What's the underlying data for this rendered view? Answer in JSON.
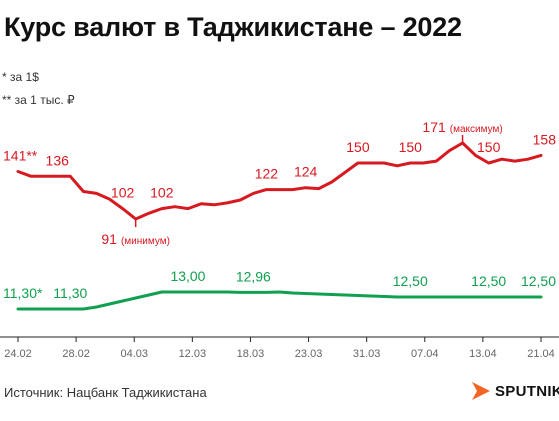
{
  "title": "Курс валют в Таджикистане – 2022",
  "notes": {
    "usd": "* за 1$",
    "rub": "** за 1 тыс. ₽"
  },
  "source": "Источник: Нацбанк Таджикистана",
  "logo_text": "SPUTNIK",
  "colors": {
    "rub_series": "#d71920",
    "usd_series": "#10a050",
    "axis": "#222222",
    "tick_text": "#666666",
    "logo": "#f26522"
  },
  "chart_data": [
    {
      "type": "line",
      "title": "",
      "xlabel": "",
      "ylabel": "",
      "grid": false,
      "x_ticks": [
        "24.02",
        "28.02",
        "04.03",
        "12.03",
        "18.03",
        "23.03",
        "31.03",
        "07.04",
        "13.04",
        "21.04"
      ],
      "series": [
        {
          "unit_note": "за 1 тыс. ₽",
          "values": [
            141,
            136,
            136,
            136,
            136,
            120,
            118,
            112,
            102,
            91,
            97,
            102,
            104,
            102,
            107,
            106,
            108,
            111,
            118,
            122,
            122,
            122,
            124,
            123,
            130,
            140,
            150,
            150,
            150,
            147,
            150,
            150,
            152,
            163,
            171,
            158,
            150,
            154,
            152,
            154,
            158
          ],
          "labels": [
            {
              "i": 0,
              "text": "141**"
            },
            {
              "i": 3,
              "text": "136"
            },
            {
              "i": 8,
              "text": "102"
            },
            {
              "i": 9,
              "text": "91",
              "note": "(минимум)"
            },
            {
              "i": 11,
              "text": "102"
            },
            {
              "i": 19,
              "text": "122"
            },
            {
              "i": 22,
              "text": "124"
            },
            {
              "i": 26,
              "text": "150"
            },
            {
              "i": 30,
              "text": "150"
            },
            {
              "i": 34,
              "text": "171",
              "note": "(максимум)"
            },
            {
              "i": 36,
              "text": "150"
            },
            {
              "i": 40,
              "text": "158"
            }
          ]
        },
        {
          "unit_note": "за 1$",
          "values": [
            11.3,
            11.3,
            11.3,
            11.3,
            11.3,
            11.3,
            11.5,
            11.8,
            12.1,
            12.4,
            12.7,
            13.0,
            13.0,
            13.0,
            13.0,
            13.0,
            13.0,
            12.96,
            12.96,
            12.96,
            13.0,
            12.9,
            12.85,
            12.8,
            12.75,
            12.7,
            12.65,
            12.6,
            12.55,
            12.5,
            12.5,
            12.5,
            12.5,
            12.5,
            12.5,
            12.5,
            12.5,
            12.5,
            12.5,
            12.5,
            12.5
          ],
          "labels": [
            {
              "i": 0,
              "text": "11,30*"
            },
            {
              "i": 4,
              "text": "11,30"
            },
            {
              "i": 13,
              "text": "13,00"
            },
            {
              "i": 18,
              "text": "12,96"
            },
            {
              "i": 30,
              "text": "12,50"
            },
            {
              "i": 36,
              "text": "12,50"
            },
            {
              "i": 40,
              "text": "12,50"
            }
          ]
        }
      ]
    }
  ]
}
